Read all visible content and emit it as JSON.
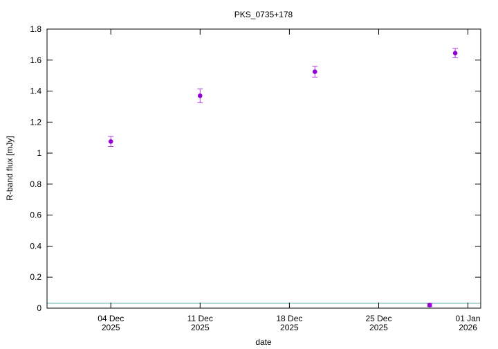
{
  "chart_data": {
    "type": "scatter",
    "title": "PKS_0735+178",
    "x_label": "date",
    "y_label": "R-band flux [mJy]",
    "xlim": [
      "2025-11-29",
      "2026-01-02"
    ],
    "xticks": [
      {
        "value": "2025-12-04",
        "label": [
          "04 Dec",
          "2025"
        ]
      },
      {
        "value": "2025-12-11",
        "label": [
          "11 Dec",
          "2025"
        ]
      },
      {
        "value": "2025-12-18",
        "label": [
          "18 Dec",
          "2025"
        ]
      },
      {
        "value": "2025-12-25",
        "label": [
          "25 Dec",
          "2025"
        ]
      },
      {
        "value": "2026-01-01",
        "label": [
          "01 Jan",
          "2026"
        ]
      }
    ],
    "ylim": [
      0,
      1.8
    ],
    "yticks": [
      0,
      0.2,
      0.4,
      0.6,
      0.8,
      1,
      1.2,
      1.4,
      1.6,
      1.8
    ],
    "series": [
      {
        "name": "R-band flux",
        "color": "#9400d3",
        "x": [
          "2025-12-04",
          "2025-12-11",
          "2025-12-20",
          "2025-12-29",
          "2025-12-31"
        ],
        "values": [
          1.075,
          1.37,
          1.525,
          0.02,
          1.645
        ],
        "errors": [
          0.032,
          0.045,
          0.035,
          0.01,
          0.03
        ]
      }
    ],
    "reference_line": {
      "value": 0.031,
      "color": "#5fb3b3"
    }
  }
}
